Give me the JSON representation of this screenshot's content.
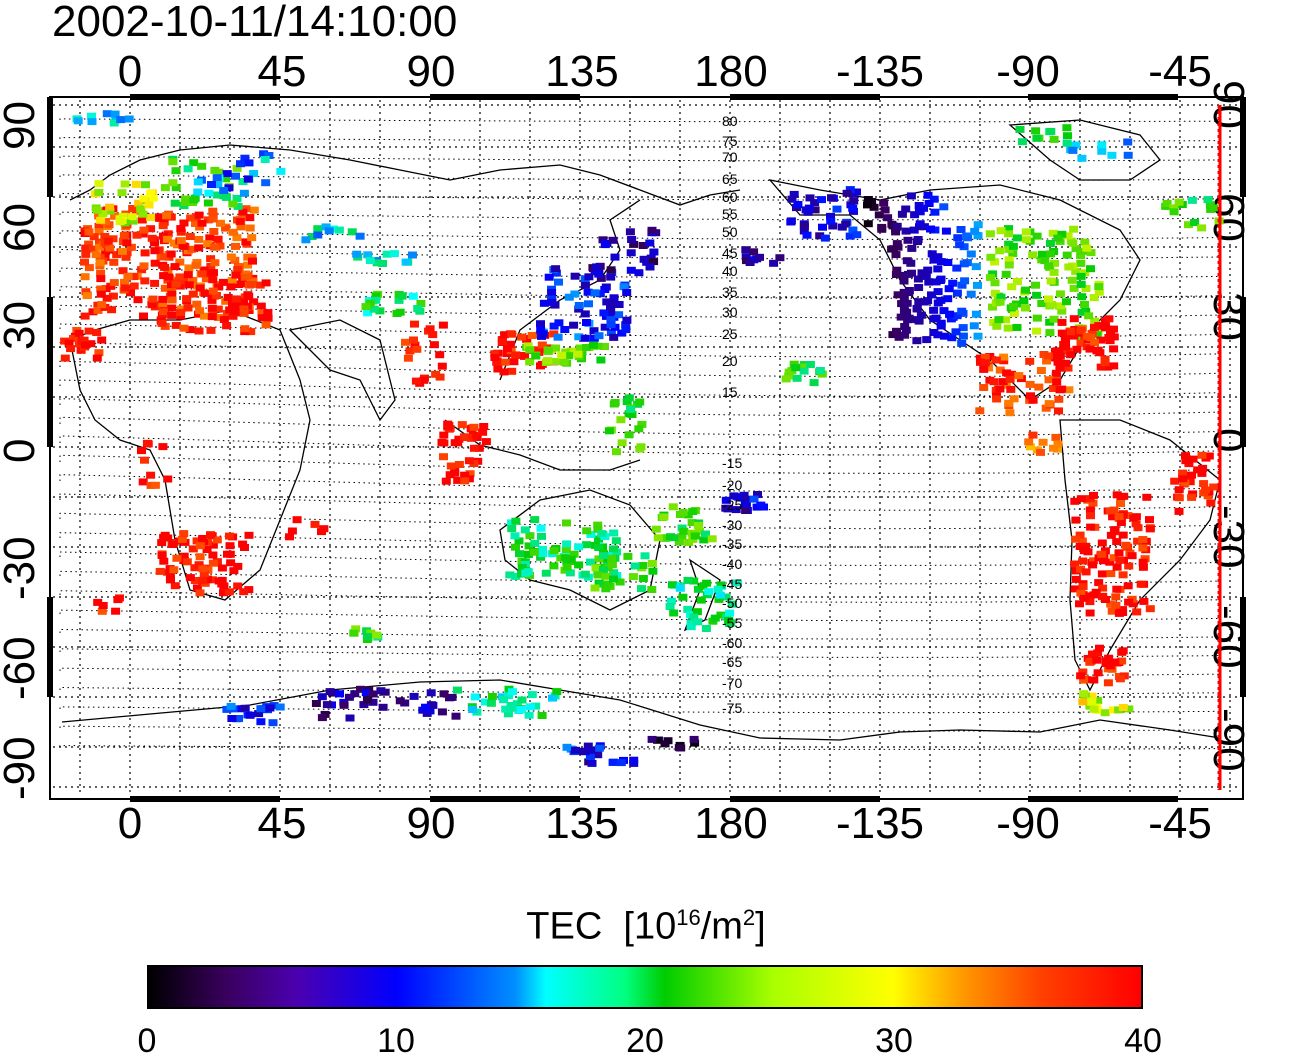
{
  "header": {
    "timestamp": "2002-10-11/14:10:00"
  },
  "axes": {
    "top_longitude_ticks": [
      "0",
      "45",
      "90",
      "135",
      "180",
      "-135",
      "-90",
      "-45"
    ],
    "bottom_longitude_ticks": [
      "0",
      "45",
      "90",
      "135",
      "180",
      "-135",
      "-90",
      "-45"
    ],
    "left_latitude_ticks": [
      "90",
      "60",
      "30",
      "0",
      "-30",
      "-60",
      "-90"
    ],
    "right_latitude_ticks": [
      "90",
      "60",
      "30",
      "0",
      "-30",
      "-60",
      "-90"
    ]
  },
  "contour_labels": {
    "north": [
      "80",
      "75",
      "70",
      "65",
      "60",
      "55",
      "50",
      "45",
      "40",
      "35",
      "30",
      "25",
      "20",
      "15"
    ],
    "south": [
      "-15",
      "-20",
      "-25",
      "-30",
      "-35",
      "-40",
      "-45",
      "-50",
      "-55",
      "-60",
      "-65",
      "-70",
      "-75"
    ]
  },
  "colorbar": {
    "title": "TEC",
    "unit_base": "[10",
    "unit_exp1": "16",
    "unit_mid": "/m",
    "unit_exp2": "2",
    "unit_close": "]",
    "min": 0,
    "max": 40,
    "ticks": [
      "0",
      "10",
      "20",
      "30",
      "40"
    ],
    "colors": [
      "#000000",
      "#3a0060",
      "#0000ff",
      "#00ffff",
      "#00cc00",
      "#ffff00",
      "#ff9900",
      "#ff0000"
    ]
  },
  "colors": {
    "meridian_line": "#ff0000",
    "frame": "#000000"
  }
}
